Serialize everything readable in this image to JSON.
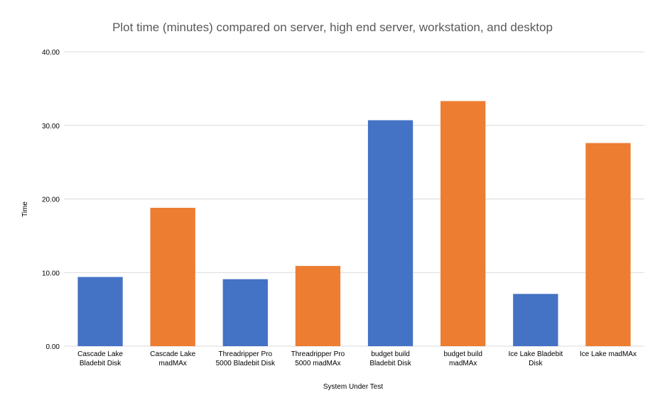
{
  "chart_data": {
    "type": "bar",
    "title": "Plot time (minutes) compared on server, high end server, workstation, and desktop",
    "xlabel": "System Under Test",
    "ylabel": "Time",
    "ylim": [
      0,
      40
    ],
    "yticks": [
      "0.00",
      "10.00",
      "20.00",
      "30.00",
      "40.00"
    ],
    "grid": true,
    "categories": [
      [
        "Cascade Lake",
        "Bladebit Disk"
      ],
      [
        "Cascade Lake",
        "madMAx"
      ],
      [
        "Threadripper Pro",
        "5000 Bladebit Disk"
      ],
      [
        "Threadripper Pro",
        "5000 madMAx"
      ],
      [
        "budget build",
        "Bladebit Disk"
      ],
      [
        "budget build",
        "madMAx"
      ],
      [
        "Ice Lake Bladebit",
        "Disk"
      ],
      [
        "Ice Lake madMAx"
      ]
    ],
    "values": [
      9.4,
      18.8,
      9.1,
      10.9,
      30.7,
      33.3,
      7.1,
      27.6
    ],
    "colors": [
      "#4472c4",
      "#ed7d31",
      "#4472c4",
      "#ed7d31",
      "#4472c4",
      "#ed7d31",
      "#4472c4",
      "#ed7d31"
    ]
  }
}
